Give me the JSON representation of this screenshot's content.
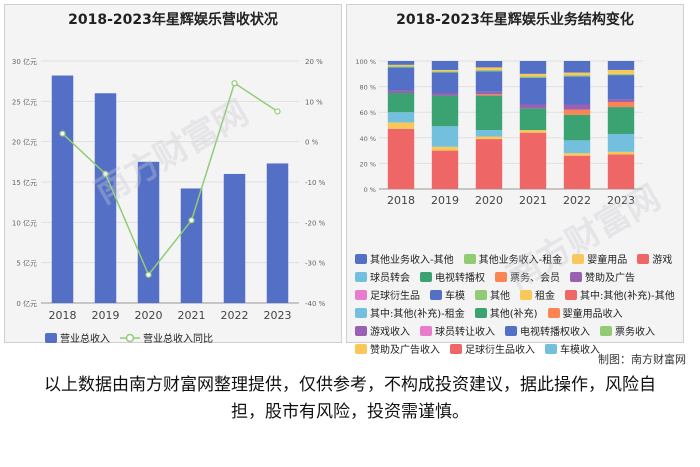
{
  "left_chart": {
    "chart_data": {
      "type": "bar",
      "title": "2018-2023年星辉娱乐营收状况",
      "categories": [
        "2018",
        "2019",
        "2020",
        "2021",
        "2022",
        "2023"
      ],
      "series": [
        {
          "name": "营业总收入",
          "kind": "bar",
          "color": "#5470c6",
          "values": [
            28.2,
            26.0,
            17.5,
            14.2,
            16.0,
            17.3
          ]
        },
        {
          "name": "营业总收入同比",
          "kind": "line",
          "color": "#91cc75",
          "values": [
            2.0,
            -8.0,
            -33.0,
            -19.5,
            14.5,
            7.5
          ]
        }
      ],
      "ylim_left": [
        0,
        30
      ],
      "yticks_left": [
        "0 亿元",
        "5 亿元",
        "10 亿元",
        "15 亿元",
        "20 亿元",
        "25 亿元",
        "30 亿元"
      ],
      "ylim_right": [
        -40,
        20
      ],
      "yticks_right": [
        "-40 %",
        "-30 %",
        "-20 %",
        "-10 %",
        "0 %",
        "10 %",
        "20 %"
      ],
      "grid": true
    }
  },
  "right_chart": {
    "chart_data": {
      "type": "bar",
      "title": "2018-2023年星辉娱乐业务结构变化",
      "stacked": true,
      "categories": [
        "2018",
        "2019",
        "2020",
        "2021",
        "2022",
        "2023"
      ],
      "ylim": [
        0,
        100
      ],
      "yticks": [
        "0 %",
        "20 %",
        "40 %",
        "60 %",
        "80 %",
        "100 %"
      ],
      "series": [
        {
          "name": "足球衍生品收入",
          "color": "#ee6666",
          "values": [
            47,
            30,
            39,
            44,
            26,
            27
          ]
        },
        {
          "name": "车模收入",
          "color": "#73c0de",
          "values": [
            0,
            0,
            0,
            0,
            0,
            0
          ]
        },
        {
          "name": "赞助及广告收入",
          "color": "#fac858",
          "values": [
            5,
            3,
            2,
            2,
            2,
            2
          ]
        },
        {
          "name": "球员转会",
          "color": "#73c0de",
          "values": [
            8,
            16,
            5,
            0,
            10,
            14
          ]
        },
        {
          "name": "电视转播权",
          "color": "#3ba272",
          "values": [
            15,
            24,
            27,
            17,
            20,
            21
          ]
        },
        {
          "name": "票务、会员",
          "color": "#fc8452",
          "values": [
            0,
            0,
            1,
            0,
            4,
            4
          ]
        },
        {
          "name": "赞助及广告",
          "color": "#9a60b4",
          "values": [
            2,
            2,
            2,
            3,
            4,
            2
          ]
        },
        {
          "name": "游戏",
          "color": "#ee6666",
          "values": [
            0,
            0,
            0,
            0,
            0,
            0
          ]
        },
        {
          "name": "车模",
          "color": "#5470c6",
          "values": [
            18,
            16,
            16,
            21,
            22,
            19
          ]
        },
        {
          "name": "其他业务收入-租金",
          "color": "#91cc75",
          "values": [
            1,
            1,
            1,
            1,
            1,
            1
          ]
        },
        {
          "name": "婴童用品",
          "color": "#fac858",
          "values": [
            1,
            1,
            2,
            2,
            2,
            3
          ]
        },
        {
          "name": "其他业务收入-其他",
          "color": "#5470c6",
          "values": [
            3,
            7,
            5,
            10,
            9,
            7
          ]
        }
      ]
    },
    "legend": [
      {
        "label": "其他业务收入-其他",
        "color": "#5470c6"
      },
      {
        "label": "其他业务收入-租金",
        "color": "#91cc75"
      },
      {
        "label": "婴童用品",
        "color": "#fac858"
      },
      {
        "label": "游戏",
        "color": "#ee6666"
      },
      {
        "label": "球员转会",
        "color": "#73c0de"
      },
      {
        "label": "电视转播权",
        "color": "#3ba272"
      },
      {
        "label": "票务、会员",
        "color": "#fc8452"
      },
      {
        "label": "赞助及广告",
        "color": "#9a60b4"
      },
      {
        "label": "足球衍生品",
        "color": "#ea7ccc"
      },
      {
        "label": "车模",
        "color": "#5470c6"
      },
      {
        "label": "其他",
        "color": "#91cc75"
      },
      {
        "label": "租金",
        "color": "#fac858"
      },
      {
        "label": "其中:其他(补充)-其他",
        "color": "#ee6666"
      },
      {
        "label": "其中:其他(补充)-租金",
        "color": "#73c0de"
      },
      {
        "label": "其他(补充)",
        "color": "#3ba272"
      },
      {
        "label": "婴童用品收入",
        "color": "#fc8452"
      },
      {
        "label": "游戏收入",
        "color": "#9a60b4"
      },
      {
        "label": "球员转让收入",
        "color": "#ea7ccc"
      },
      {
        "label": "电视转播权收入",
        "color": "#5470c6"
      },
      {
        "label": "票务收入",
        "color": "#91cc75"
      },
      {
        "label": "赞助及广告收入",
        "color": "#fac858"
      },
      {
        "label": "足球衍生品收入",
        "color": "#ee6666"
      },
      {
        "label": "车模收入",
        "color": "#73c0de"
      }
    ]
  },
  "watermark": "南方财富网",
  "credit": "制图：南方财富网",
  "disclaimer": "以上数据由南方财富网整理提供，仅供参考，不构成投资建议，据此操作，风险自担，股市有风险，投资需谨慎。"
}
